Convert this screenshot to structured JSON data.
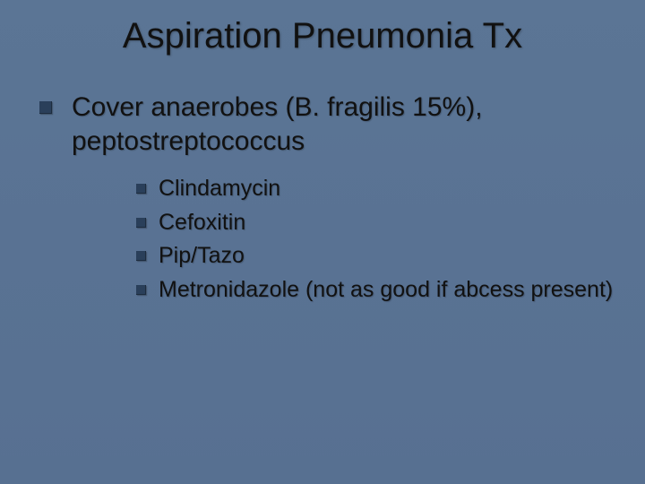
{
  "colors": {
    "background_top": "#5b7595",
    "background_bottom": "#577091",
    "bullet": "#2a3f5a",
    "text": "#111111"
  },
  "typography": {
    "title_fontsize": 40,
    "body_fontsize": 30,
    "sub_fontsize": 25,
    "font_family": "Verdana"
  },
  "title": "Aspiration Pneumonia Tx",
  "points": [
    {
      "text": "Cover anaerobes (B. fragilis 15%), peptostreptococcus",
      "sub": [
        "Clindamycin",
        "Cefoxitin",
        "Pip/Tazo",
        "Metronidazole (not as good if abcess present)"
      ]
    }
  ]
}
